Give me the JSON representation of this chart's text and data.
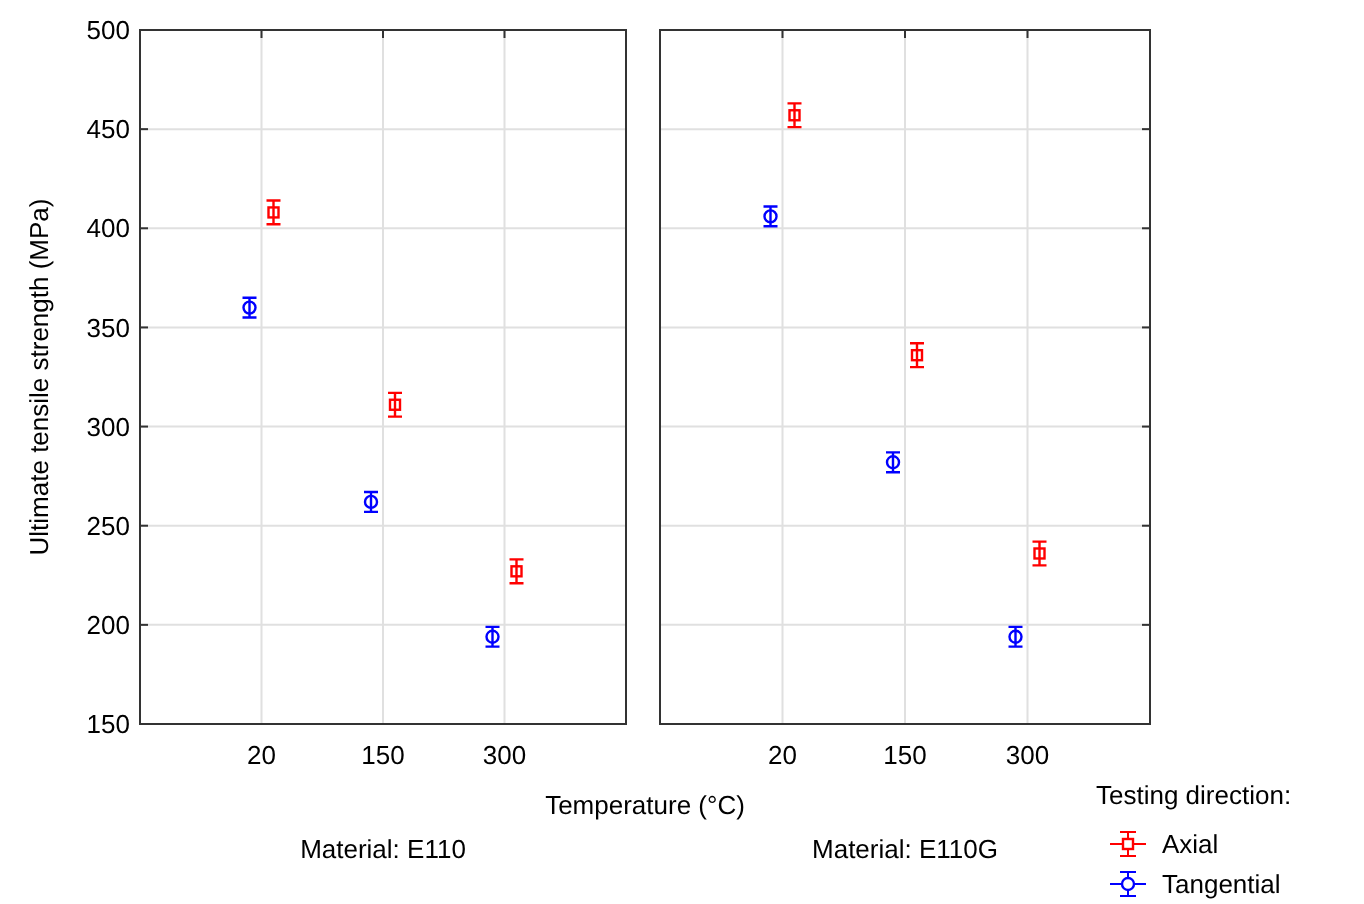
{
  "chart_data": [
    {
      "type": "scatter",
      "title": "Material: E110",
      "xlabel": "Temperature (°C)",
      "ylabel": "Ultimate tensile strength (MPa)",
      "categories": [
        "20",
        "150",
        "300"
      ],
      "ylim": [
        150,
        500
      ],
      "yticks": [
        150,
        200,
        250,
        300,
        350,
        400,
        450,
        500
      ],
      "grid": true,
      "legend": false,
      "series": [
        {
          "color": "#ff0000",
          "marker": "square",
          "values": [
            408,
            311,
            227
          ],
          "errors": [
            6,
            6,
            6
          ]
        },
        {
          "color": "#0000ff",
          "marker": "circle",
          "values": [
            360,
            262,
            194
          ],
          "errors": [
            5,
            5,
            5
          ]
        }
      ]
    },
    {
      "type": "scatter",
      "title": "Material: E110G",
      "categories": [
        "20",
        "150",
        "300"
      ],
      "ylim": [
        150,
        500
      ],
      "yticks": [
        150,
        200,
        250,
        300,
        350,
        400,
        450,
        500
      ],
      "grid": true,
      "tick_labels": "x",
      "legend": "bottom right",
      "legend_title": "Testing direction:",
      "series": [
        {
          "name": "Axial",
          "color": "#ff0000",
          "marker": "square",
          "values": [
            457,
            336,
            236
          ],
          "errors": [
            6,
            6,
            6
          ]
        },
        {
          "name": "Tangential",
          "color": "#0000ff",
          "marker": "circle",
          "values": [
            406,
            282,
            194
          ],
          "errors": [
            5,
            5,
            5
          ]
        }
      ]
    }
  ]
}
